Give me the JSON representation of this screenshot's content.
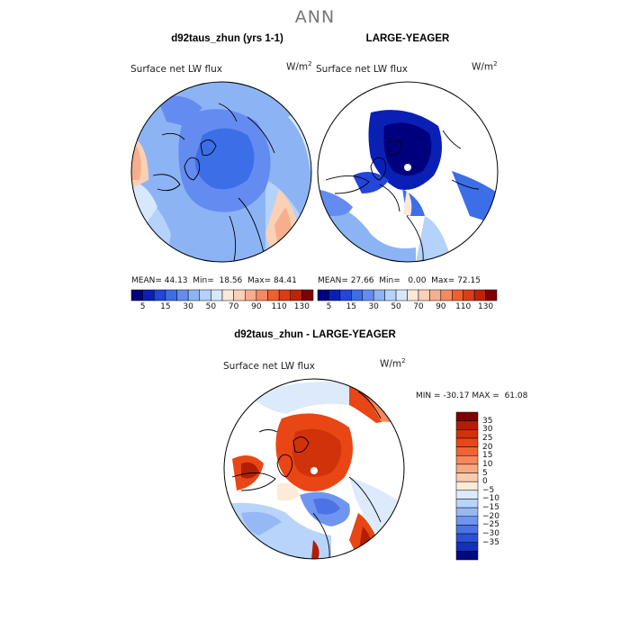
{
  "page": {
    "title": "ANN"
  },
  "panels": [
    {
      "title": "d92taus_zhun (yrs 1-1)",
      "variable": "Surface net LW flux",
      "units_base": "W/m",
      "units_exp": "2",
      "stats": {
        "mean": "44.13",
        "min": "18.56",
        "max": "84.41"
      },
      "colorbar_ticks": [
        "5",
        "15",
        "30",
        "50",
        "70",
        "90",
        "110",
        "130"
      ]
    },
    {
      "title": "LARGE-YEAGER",
      "variable": "Surface net LW flux",
      "units_base": "W/m",
      "units_exp": "2",
      "stats": {
        "mean": "27.66",
        "min": "0.00",
        "max": "72.15"
      },
      "colorbar_ticks": [
        "5",
        "15",
        "30",
        "50",
        "70",
        "90",
        "110",
        "130"
      ]
    },
    {
      "title": "d92taus_zhun - LARGE-YEAGER",
      "variable": "Surface net LW flux",
      "units_base": "W/m",
      "units_exp": "2",
      "stats": {
        "min": "-30.17",
        "max": "61.08"
      },
      "colorbar_ticks": [
        "35",
        "30",
        "25",
        "20",
        "15",
        "10",
        "5",
        "0",
        "−5",
        "−10",
        "−15",
        "−20",
        "−25",
        "−30",
        "−35"
      ]
    }
  ],
  "labels": {
    "mean": "MEAN=",
    "min": "Min=",
    "max": "Max=",
    "diff_min": "MIN =",
    "diff_max": "MAX ="
  },
  "chart_data": [
    {
      "type": "heatmap",
      "title": "d92taus_zhun (yrs 1-1)",
      "subtitle": "Surface net LW flux",
      "units": "W/m^2",
      "projection": "north polar stereographic",
      "stats": {
        "mean": 44.13,
        "min": 18.56,
        "max": 84.41
      },
      "levels": [
        5,
        15,
        30,
        50,
        70,
        90,
        110,
        130
      ],
      "colors": [
        "#00007f",
        "#0a1fb4",
        "#2346dc",
        "#3c6ee8",
        "#648cf0",
        "#8cb4f5",
        "#b4d2fa",
        "#d7e8fc",
        "#fde8d8",
        "#fbd0b4",
        "#f8ad8c",
        "#f5895f",
        "#f0602d",
        "#dc3c14",
        "#be2308",
        "#7f0000"
      ]
    },
    {
      "type": "heatmap",
      "title": "LARGE-YEAGER",
      "subtitle": "Surface net LW flux",
      "units": "W/m^2",
      "projection": "north polar stereographic",
      "stats": {
        "mean": 27.66,
        "min": 0.0,
        "max": 72.15
      },
      "levels": [
        5,
        15,
        30,
        50,
        70,
        90,
        110,
        130
      ],
      "colors": [
        "#00007f",
        "#0a1fb4",
        "#2346dc",
        "#3c6ee8",
        "#648cf0",
        "#8cb4f5",
        "#b4d2fa",
        "#d7e8fc",
        "#fde8d8",
        "#fbd0b4",
        "#f8ad8c",
        "#f5895f",
        "#f0602d",
        "#dc3c14",
        "#be2308",
        "#7f0000"
      ]
    },
    {
      "type": "heatmap",
      "title": "d92taus_zhun - LARGE-YEAGER",
      "subtitle": "Surface net LW flux",
      "units": "W/m^2",
      "projection": "north polar stereographic",
      "stats": {
        "min": -30.17,
        "max": 61.08
      },
      "levels": [
        35,
        30,
        25,
        20,
        15,
        10,
        5,
        0,
        -5,
        -10,
        -15,
        -20,
        -25,
        -30,
        -35
      ],
      "colors": [
        "#7f0000",
        "#b01e05",
        "#d2320a",
        "#e84614",
        "#f06432",
        "#f5875a",
        "#f8a982",
        "#fbcbad",
        "#fdebda",
        "#dceafc",
        "#b9d4fa",
        "#96b9f5",
        "#6e96f0",
        "#4b73e6",
        "#2d50d7",
        "#1430b9",
        "#000a7f"
      ]
    }
  ]
}
